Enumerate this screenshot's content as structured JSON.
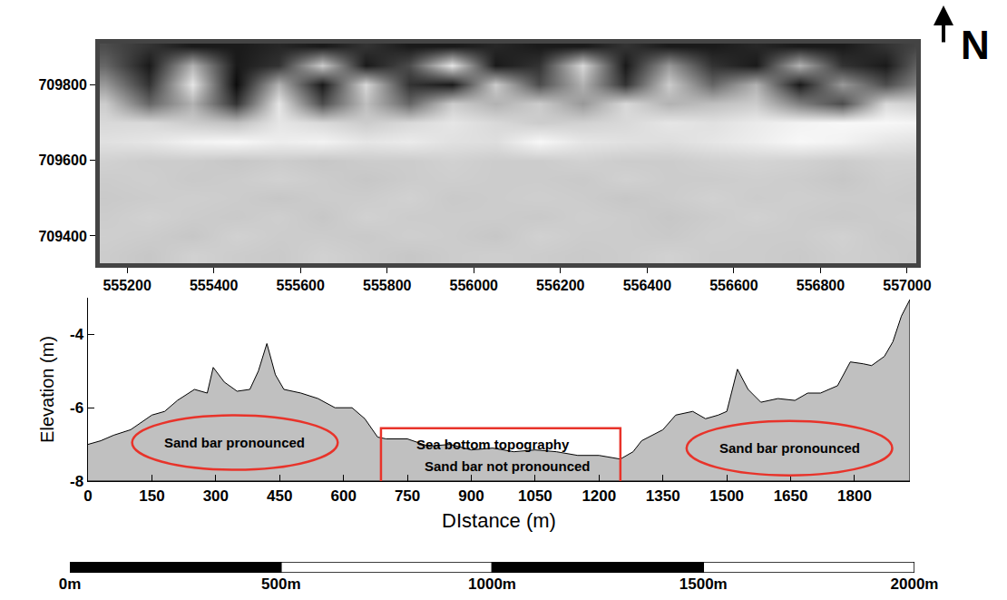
{
  "chart_data": [
    {
      "type": "heatmap",
      "x": [
        555150,
        555250,
        555350,
        555450,
        555550,
        555650,
        555750,
        555850,
        555950,
        556050,
        556150,
        556250,
        556350,
        556450,
        556550,
        556650,
        556750,
        556850,
        556950,
        557050
      ],
      "y": [
        709350,
        709400,
        709450,
        709500,
        709550,
        709600,
        709650,
        709700,
        709750,
        709800,
        709850,
        709900
      ],
      "cells": [
        [
          0.8,
          0.78,
          0.82,
          0.8,
          0.79,
          0.82,
          0.8,
          0.78,
          0.8,
          0.81,
          0.8,
          0.79,
          0.8,
          0.82,
          0.8,
          0.8,
          0.79,
          0.81,
          0.8,
          0.78
        ],
        [
          0.81,
          0.8,
          0.78,
          0.82,
          0.8,
          0.8,
          0.79,
          0.81,
          0.8,
          0.78,
          0.82,
          0.8,
          0.8,
          0.79,
          0.81,
          0.8,
          0.8,
          0.82,
          0.79,
          0.8
        ],
        [
          0.8,
          0.82,
          0.8,
          0.79,
          0.81,
          0.78,
          0.82,
          0.8,
          0.8,
          0.8,
          0.79,
          0.81,
          0.8,
          0.78,
          0.8,
          0.82,
          0.8,
          0.79,
          0.8,
          0.81
        ],
        [
          0.79,
          0.8,
          0.81,
          0.8,
          0.78,
          0.8,
          0.8,
          0.82,
          0.79,
          0.8,
          0.81,
          0.8,
          0.78,
          0.8,
          0.82,
          0.8,
          0.81,
          0.8,
          0.8,
          0.79
        ],
        [
          0.8,
          0.81,
          0.79,
          0.8,
          0.82,
          0.8,
          0.78,
          0.8,
          0.81,
          0.8,
          0.8,
          0.79,
          0.82,
          0.8,
          0.8,
          0.81,
          0.8,
          0.78,
          0.81,
          0.8
        ],
        [
          0.82,
          0.8,
          0.8,
          0.78,
          0.8,
          0.78,
          0.8,
          0.8,
          0.82,
          0.8,
          0.8,
          0.82,
          0.8,
          0.8,
          0.82,
          0.83,
          0.82,
          0.8,
          0.82,
          0.82
        ],
        [
          0.88,
          0.9,
          0.95,
          0.97,
          0.93,
          0.95,
          0.9,
          0.92,
          0.88,
          0.87,
          0.97,
          0.9,
          0.88,
          0.87,
          0.9,
          0.93,
          0.97,
          0.95,
          0.9,
          0.88
        ],
        [
          0.85,
          0.85,
          0.8,
          0.75,
          0.9,
          0.85,
          0.8,
          0.85,
          0.9,
          0.85,
          0.8,
          0.82,
          0.85,
          0.9,
          0.88,
          0.92,
          0.95,
          0.97,
          0.97,
          0.95
        ],
        [
          0.8,
          0.4,
          0.7,
          0.2,
          0.9,
          0.3,
          0.75,
          0.4,
          0.8,
          0.7,
          0.8,
          0.6,
          0.85,
          0.7,
          0.75,
          0.8,
          0.5,
          0.3,
          0.85,
          0.8
        ],
        [
          0.6,
          0.2,
          0.9,
          0.05,
          0.7,
          0.1,
          0.85,
          0.2,
          0.1,
          0.8,
          0.3,
          0.7,
          0.2,
          0.8,
          0.4,
          0.7,
          0.1,
          0.6,
          0.3,
          0.6
        ],
        [
          0.4,
          0.1,
          0.7,
          0.1,
          0.2,
          0.8,
          0.1,
          0.3,
          0.9,
          0.1,
          0.2,
          0.85,
          0.1,
          0.6,
          0.2,
          0.1,
          0.7,
          0.2,
          0.1,
          0.5
        ],
        [
          0.3,
          0.2,
          0.1,
          0.1,
          0.15,
          0.1,
          0.2,
          0.1,
          0.1,
          0.15,
          0.1,
          0.1,
          0.2,
          0.1,
          0.1,
          0.15,
          0.1,
          0.1,
          0.2,
          0.3
        ]
      ],
      "zlim": [
        0,
        1
      ],
      "xlim": [
        555137,
        557021
      ],
      "ylim": [
        709328,
        709908
      ],
      "xticks": [
        555200,
        555400,
        555600,
        555800,
        556000,
        556200,
        556400,
        556600,
        556800,
        557000
      ],
      "yticks": [
        709400,
        709600,
        709800
      ],
      "grid": false,
      "annotations": [
        {
          "text": "N"
        }
      ]
    },
    {
      "type": "area",
      "xlabel": "DIstance (m)",
      "ylabel": "Elevation (m)",
      "color": "#c0c0c0",
      "x": [
        0,
        30,
        60,
        100,
        150,
        180,
        210,
        250,
        280,
        294,
        320,
        350,
        380,
        400,
        420,
        440,
        460,
        500,
        540,
        580,
        620,
        650,
        680,
        700,
        750,
        800,
        850,
        900,
        950,
        1000,
        1050,
        1100,
        1150,
        1200,
        1250,
        1280,
        1300,
        1350,
        1380,
        1420,
        1450,
        1480,
        1500,
        1525,
        1550,
        1580,
        1620,
        1660,
        1690,
        1720,
        1760,
        1790,
        1820,
        1840,
        1870,
        1890,
        1910,
        1930
      ],
      "values": [
        -7.0,
        -6.9,
        -6.75,
        -6.6,
        -6.2,
        -6.1,
        -5.8,
        -5.5,
        -5.6,
        -4.9,
        -5.3,
        -5.55,
        -5.5,
        -5.0,
        -4.25,
        -5.1,
        -5.5,
        -5.6,
        -5.75,
        -6.0,
        -6.0,
        -6.3,
        -6.8,
        -6.85,
        -6.85,
        -7.05,
        -7.0,
        -7.15,
        -7.1,
        -7.2,
        -7.15,
        -7.2,
        -7.3,
        -7.3,
        -7.4,
        -7.2,
        -6.9,
        -6.6,
        -6.2,
        -6.1,
        -6.3,
        -6.2,
        -6.1,
        -4.95,
        -5.5,
        -5.85,
        -5.75,
        -5.8,
        -5.6,
        -5.6,
        -5.4,
        -4.75,
        -4.8,
        -4.85,
        -4.6,
        -4.2,
        -3.5,
        -3.05
      ],
      "xlim": [
        0,
        1930
      ],
      "ylim": [
        -8,
        -3
      ],
      "xticks": [
        0,
        150,
        300,
        450,
        600,
        750,
        900,
        1050,
        1200,
        1350,
        1500,
        1650,
        1800
      ],
      "yticks": [
        -8,
        -6,
        -4
      ],
      "grid": false,
      "annotations": [
        {
          "text": "Sand bar pronounced",
          "x": 345,
          "y": -6.95,
          "marker": "ellipse",
          "color": "#e8332a"
        },
        {
          "text": "Sea bottom topography",
          "x": 952,
          "y": -7.0,
          "marker": "rectangle",
          "color": "#e8332a"
        },
        {
          "text": "Sand bar not pronounced",
          "x": 986,
          "y": -7.6,
          "marker": "rectangle",
          "color": "#e8332a"
        },
        {
          "text": "Sand bar pronounced",
          "x": 1647,
          "y": -7.1,
          "marker": "ellipse",
          "color": "#e8332a"
        }
      ]
    },
    {
      "type": "scalebar",
      "xlim": [
        0,
        2000
      ],
      "xticks": [
        {
          "value": 0,
          "label": "0m"
        },
        {
          "value": 500,
          "label": "500m"
        },
        {
          "value": 1000,
          "label": "1000m"
        },
        {
          "value": 1500,
          "label": "1500m"
        },
        {
          "value": 2000,
          "label": "2000m"
        }
      ],
      "colors": [
        "#000000",
        "#ffffff",
        "#000000",
        "#ffffff"
      ]
    }
  ]
}
